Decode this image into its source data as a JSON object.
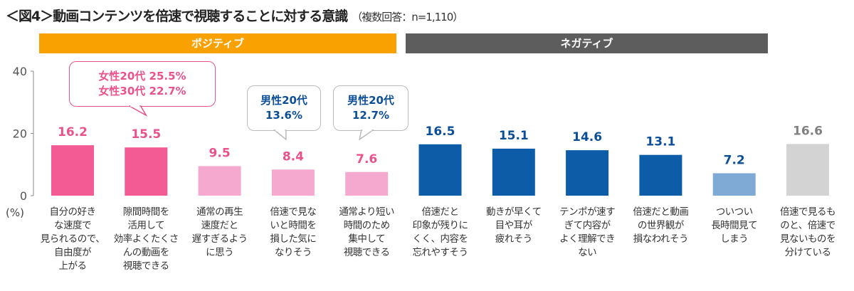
{
  "title": "＜図4＞動画コンテンツを倍速で視聴することに対する意識",
  "subtitle": "（複数回答：n=1,110）",
  "groups": {
    "positive": "ポジティブ",
    "negative": "ネガティブ"
  },
  "chart_data": {
    "type": "bar",
    "ylabel": "(%)",
    "ylim": [
      0,
      40
    ],
    "yticks": [
      "0",
      "20",
      "40"
    ],
    "categories": [
      [
        "自分の好き",
        "な速度で",
        "見られるので、",
        "自由度が",
        "上がる"
      ],
      [
        "隙間時間を",
        "活用して",
        "効率よくたくさ",
        "んの動画を",
        "視聴できる"
      ],
      [
        "通常の再生",
        "速度だと",
        "遅すぎるよう",
        "に思う"
      ],
      [
        "倍速で見な",
        "いと時間を",
        "損した気に",
        "なりそう"
      ],
      [
        "通常より短い",
        "時間のため",
        "集中して",
        "視聴できる"
      ],
      [
        "倍速だと",
        "印象が残りに",
        "くく、内容を",
        "忘れやすそう"
      ],
      [
        "動きが早くて",
        "目や耳が",
        "疲れそう"
      ],
      [
        "テンポが速す",
        "ぎて内容が",
        "よく理解でき",
        "ない"
      ],
      [
        "倍速だと動画",
        "の世界観が",
        "損なわれそう"
      ],
      [
        "ついつい",
        "長時間見て",
        "しまう"
      ],
      [
        "倍速で見るも",
        "のと、倍速で",
        "見ないものを",
        "分けている"
      ]
    ],
    "values": [
      16.2,
      15.5,
      9.5,
      8.4,
      7.6,
      16.5,
      15.1,
      14.6,
      13.1,
      7.2,
      16.6
    ],
    "value_labels": [
      "16.2",
      "15.5",
      "9.5",
      "8.4",
      "7.6",
      "16.5",
      "15.1",
      "14.6",
      "13.1",
      "7.2",
      "16.6"
    ],
    "colors": [
      "#f35b94",
      "#f35b94",
      "#f6a9cf",
      "#f6a9cf",
      "#f6a9cf",
      "#0c5ca8",
      "#0c5ca8",
      "#0c5ca8",
      "#0c5ca8",
      "#80aad6",
      "#d3d3d3"
    ],
    "label_colors": [
      "#e9528c",
      "#e9528c",
      "#e9528c",
      "#e9528c",
      "#e9528c",
      "#0d4f97",
      "#0d4f97",
      "#0d4f97",
      "#0d4f97",
      "#0d4f97",
      "#808080"
    ],
    "annotations": [
      {
        "lines": [
          "女性20代  25.5%",
          "女性30代  22.7%"
        ],
        "color": "#e9528c",
        "target": 1
      },
      {
        "lines": [
          "男性20代",
          "13.6%"
        ],
        "color": "#0d4f97",
        "target": 3
      },
      {
        "lines": [
          "男性20代",
          "12.7%"
        ],
        "color": "#0d4f97",
        "target": 4
      }
    ]
  }
}
